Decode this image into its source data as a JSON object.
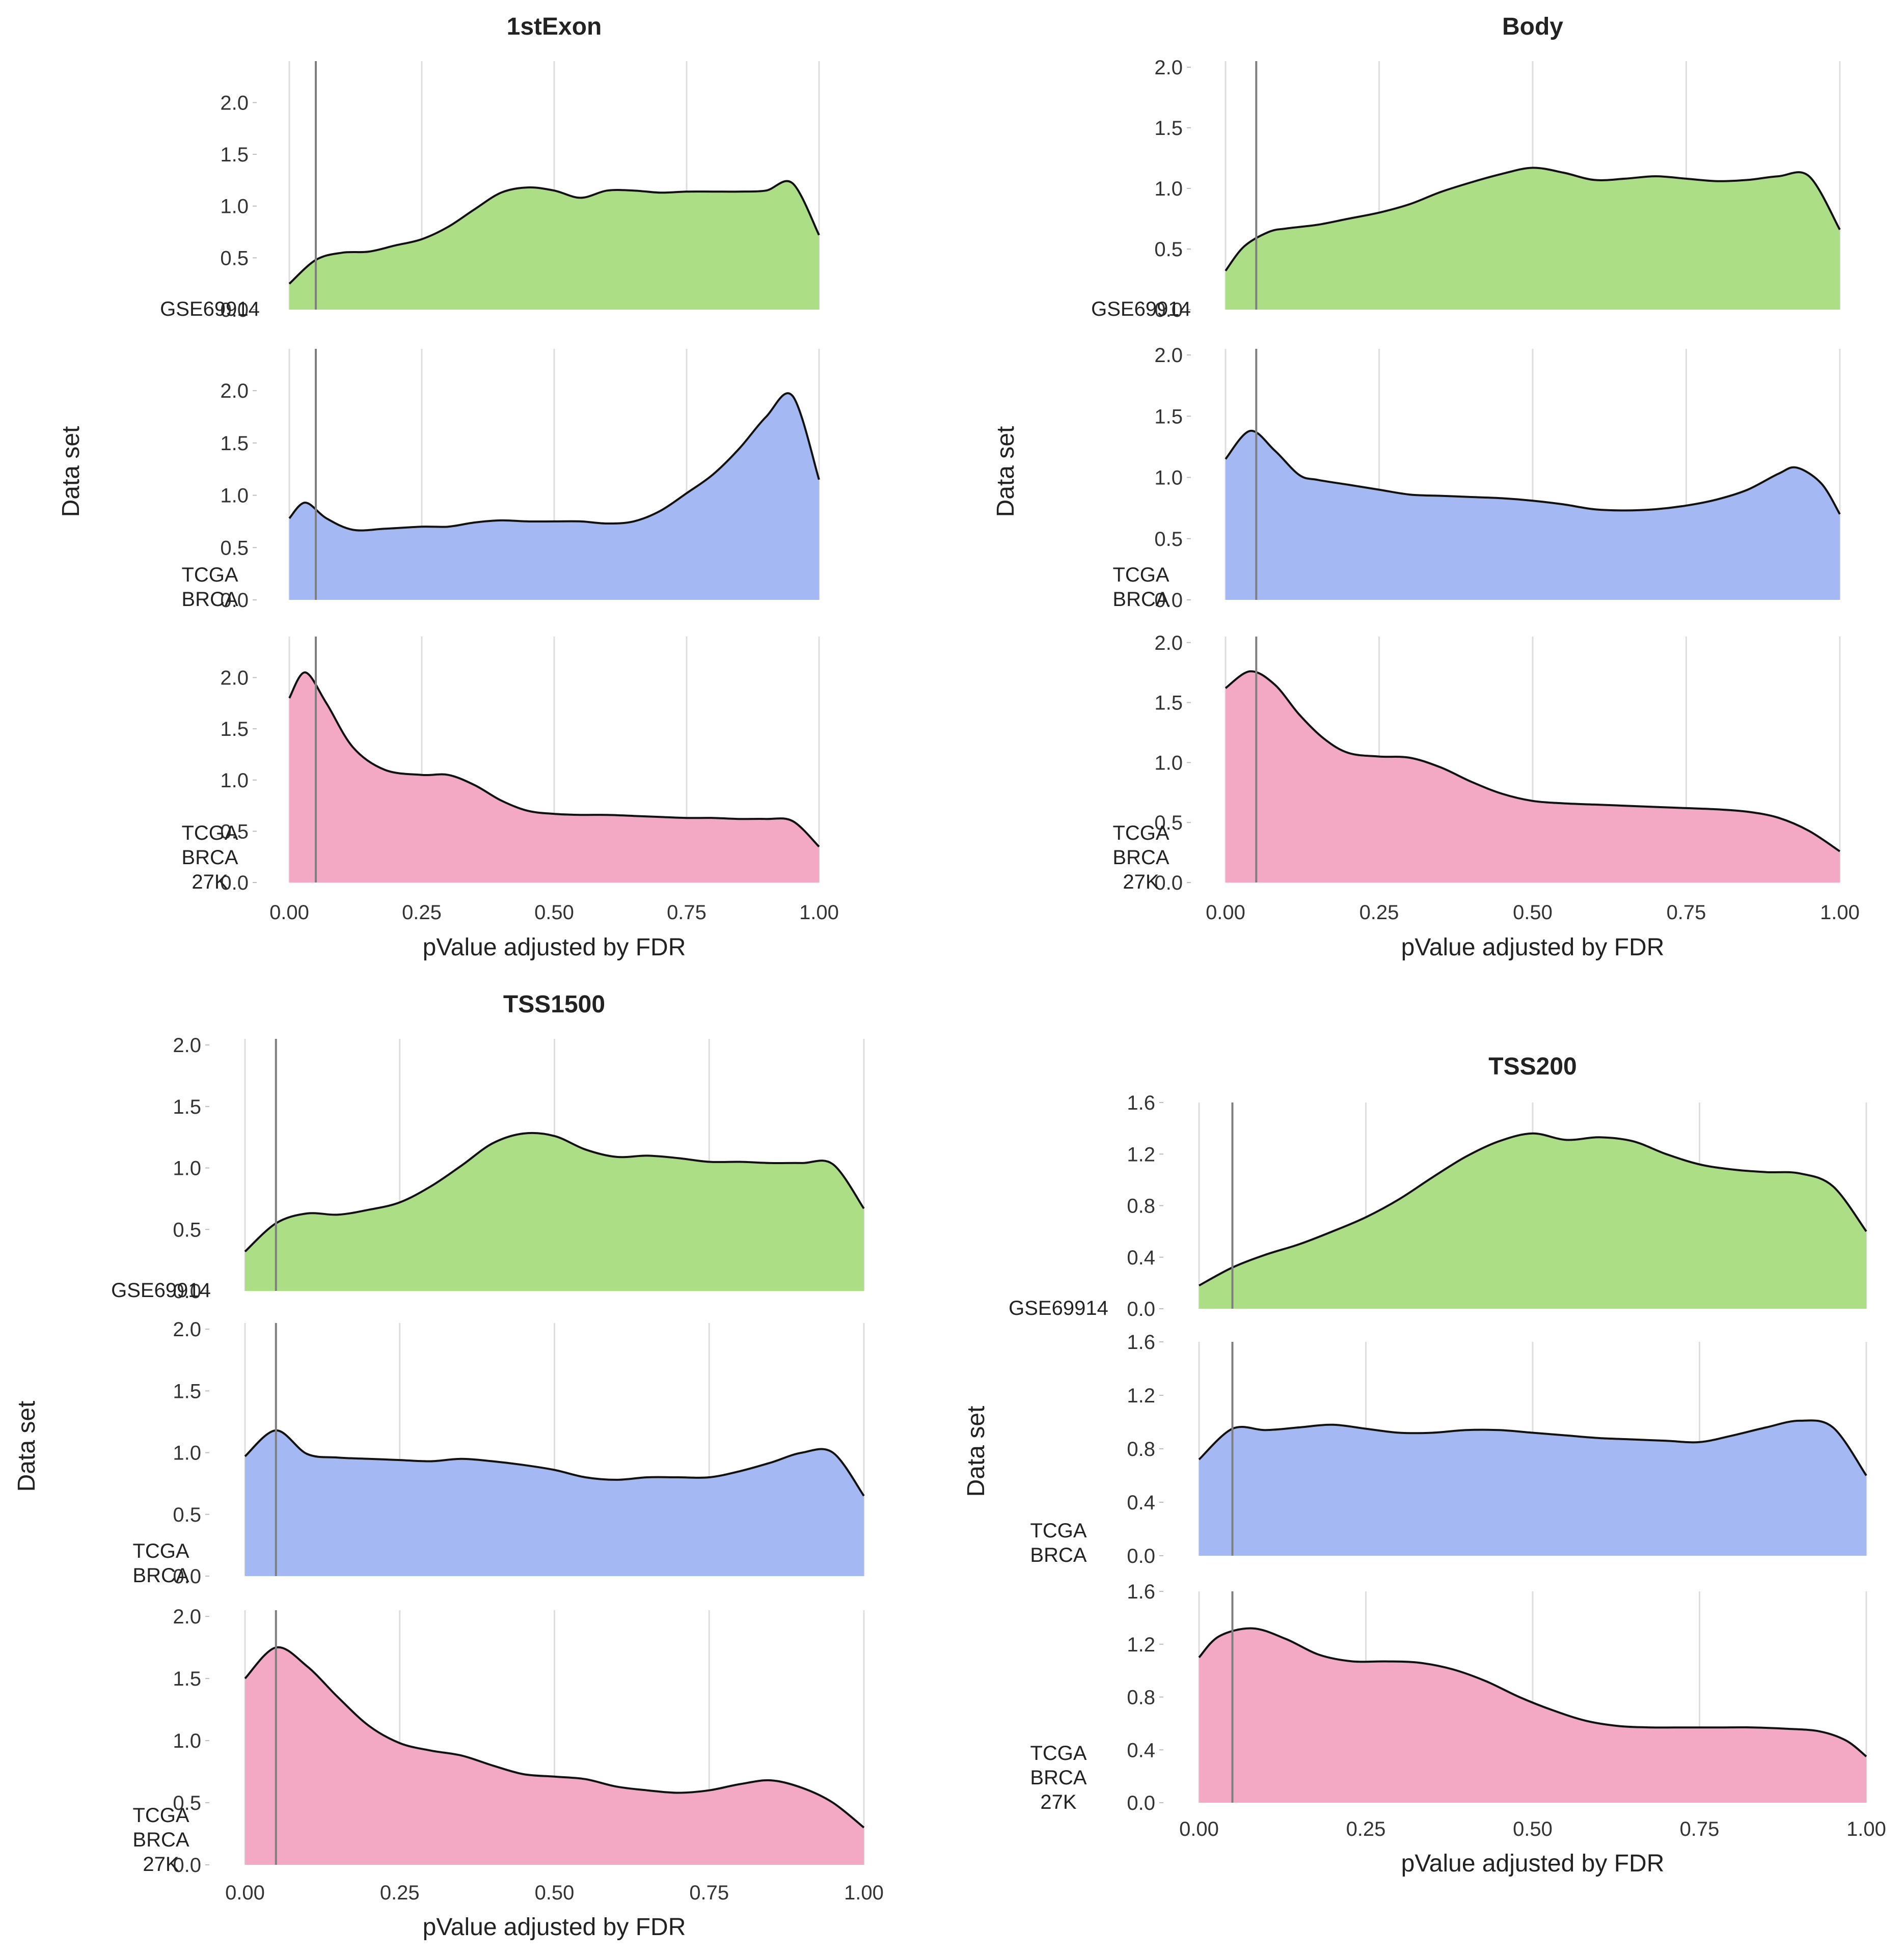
{
  "colors": {
    "GSE69914": "#acdf85",
    "TCGA BRCA": "#a4b8f4",
    "TCGA BRCA 27K": "#f3a8c4"
  },
  "chart_data": [
    {
      "type": "area",
      "title": "1stExon",
      "xlabel": "pValue adjusted by FDR",
      "ylabel": "Data set",
      "xlim": [
        0,
        1
      ],
      "x_ticks": [
        "0.00",
        "0.25",
        "0.50",
        "0.75",
        "1.00"
      ],
      "vline": 0.05,
      "rows": [
        {
          "label": [
            "GSE69914"
          ],
          "color_key": "GSE69914",
          "ylim": [
            0,
            2.4
          ],
          "y_ticks": [
            "0.0",
            "0.5",
            "1.0",
            "1.5",
            "2.0"
          ],
          "x": [
            0,
            0.05,
            0.1,
            0.15,
            0.2,
            0.25,
            0.3,
            0.35,
            0.4,
            0.45,
            0.5,
            0.55,
            0.6,
            0.65,
            0.7,
            0.75,
            0.8,
            0.85,
            0.9,
            0.95,
            1
          ],
          "y": [
            0.25,
            0.48,
            0.55,
            0.56,
            0.62,
            0.68,
            0.8,
            0.97,
            1.13,
            1.18,
            1.15,
            1.08,
            1.15,
            1.15,
            1.13,
            1.14,
            1.14,
            1.14,
            1.15,
            1.22,
            0.72
          ]
        },
        {
          "label": [
            "TCGA",
            "BRCA"
          ],
          "color_key": "TCGA BRCA",
          "ylim": [
            0,
            2.4
          ],
          "y_ticks": [
            "0.0",
            "0.5",
            "1.0",
            "1.5",
            "2.0"
          ],
          "x": [
            0,
            0.03,
            0.07,
            0.12,
            0.18,
            0.25,
            0.3,
            0.35,
            0.4,
            0.45,
            0.5,
            0.55,
            0.6,
            0.65,
            0.7,
            0.75,
            0.8,
            0.85,
            0.9,
            0.95,
            1
          ],
          "y": [
            0.78,
            0.93,
            0.78,
            0.67,
            0.68,
            0.7,
            0.7,
            0.74,
            0.76,
            0.75,
            0.75,
            0.75,
            0.73,
            0.75,
            0.85,
            1.02,
            1.2,
            1.45,
            1.75,
            1.95,
            1.15
          ]
        },
        {
          "label": [
            "TCGA",
            "BRCA",
            "27K"
          ],
          "color_key": "TCGA BRCA 27K",
          "ylim": [
            0,
            2.4
          ],
          "y_ticks": [
            "0.0",
            "0.5",
            "1.0",
            "1.5",
            "2.0"
          ],
          "x": [
            0,
            0.03,
            0.07,
            0.12,
            0.18,
            0.25,
            0.3,
            0.35,
            0.4,
            0.45,
            0.5,
            0.55,
            0.6,
            0.65,
            0.7,
            0.75,
            0.8,
            0.85,
            0.9,
            0.95,
            1
          ],
          "y": [
            1.8,
            2.05,
            1.75,
            1.32,
            1.1,
            1.05,
            1.05,
            0.95,
            0.8,
            0.7,
            0.67,
            0.66,
            0.66,
            0.65,
            0.64,
            0.63,
            0.63,
            0.62,
            0.62,
            0.6,
            0.35
          ]
        }
      ]
    },
    {
      "type": "area",
      "title": "Body",
      "xlabel": "pValue adjusted by FDR",
      "ylabel": "Data set",
      "xlim": [
        0,
        1
      ],
      "x_ticks": [
        "0.00",
        "0.25",
        "0.50",
        "0.75",
        "1.00"
      ],
      "vline": 0.05,
      "rows": [
        {
          "label": [
            "GSE69914"
          ],
          "color_key": "GSE69914",
          "ylim": [
            0,
            2.05
          ],
          "y_ticks": [
            "0.0",
            "0.5",
            "1.0",
            "1.5",
            "2.0"
          ],
          "x": [
            0,
            0.03,
            0.07,
            0.1,
            0.15,
            0.2,
            0.25,
            0.3,
            0.35,
            0.4,
            0.45,
            0.5,
            0.55,
            0.6,
            0.65,
            0.7,
            0.75,
            0.8,
            0.85,
            0.9,
            0.95,
            1
          ],
          "y": [
            0.32,
            0.52,
            0.64,
            0.67,
            0.7,
            0.75,
            0.8,
            0.87,
            0.97,
            1.05,
            1.12,
            1.17,
            1.13,
            1.07,
            1.08,
            1.1,
            1.08,
            1.06,
            1.07,
            1.1,
            1.1,
            0.66
          ]
        },
        {
          "label": [
            "TCGA",
            "BRCA"
          ],
          "color_key": "TCGA BRCA",
          "ylim": [
            0,
            2.05
          ],
          "y_ticks": [
            "0.0",
            "0.5",
            "1.0",
            "1.5",
            "2.0"
          ],
          "x": [
            0,
            0.04,
            0.08,
            0.12,
            0.15,
            0.2,
            0.25,
            0.3,
            0.35,
            0.4,
            0.45,
            0.5,
            0.55,
            0.6,
            0.65,
            0.7,
            0.75,
            0.8,
            0.85,
            0.9,
            0.93,
            0.97,
            1
          ],
          "y": [
            1.15,
            1.38,
            1.22,
            1.02,
            0.98,
            0.94,
            0.9,
            0.86,
            0.85,
            0.84,
            0.83,
            0.81,
            0.78,
            0.74,
            0.73,
            0.74,
            0.77,
            0.82,
            0.9,
            1.03,
            1.08,
            0.95,
            0.7
          ]
        },
        {
          "label": [
            "TCGA",
            "BRCA",
            "27K"
          ],
          "color_key": "TCGA BRCA 27K",
          "ylim": [
            0,
            2.05
          ],
          "y_ticks": [
            "0.0",
            "0.5",
            "1.0",
            "1.5",
            "2.0"
          ],
          "x": [
            0,
            0.04,
            0.08,
            0.12,
            0.16,
            0.2,
            0.25,
            0.3,
            0.35,
            0.4,
            0.45,
            0.5,
            0.55,
            0.6,
            0.65,
            0.7,
            0.75,
            0.8,
            0.85,
            0.9,
            0.95,
            1
          ],
          "y": [
            1.62,
            1.76,
            1.65,
            1.4,
            1.2,
            1.08,
            1.05,
            1.04,
            0.96,
            0.84,
            0.74,
            0.68,
            0.66,
            0.65,
            0.64,
            0.63,
            0.62,
            0.61,
            0.59,
            0.54,
            0.43,
            0.26
          ]
        }
      ]
    },
    {
      "type": "area",
      "title": "TSS1500",
      "xlabel": "pValue adjusted by FDR",
      "ylabel": "Data set",
      "xlim": [
        0,
        1
      ],
      "x_ticks": [
        "0.00",
        "0.25",
        "0.50",
        "0.75",
        "1.00"
      ],
      "vline": 0.05,
      "rows": [
        {
          "label": [
            "GSE69914"
          ],
          "color_key": "GSE69914",
          "ylim": [
            0,
            2.05
          ],
          "y_ticks": [
            "0.0",
            "0.5",
            "1.0",
            "1.5",
            "2.0"
          ],
          "x": [
            0,
            0.05,
            0.1,
            0.15,
            0.2,
            0.25,
            0.3,
            0.35,
            0.4,
            0.45,
            0.5,
            0.55,
            0.6,
            0.65,
            0.7,
            0.75,
            0.8,
            0.85,
            0.9,
            0.95,
            1
          ],
          "y": [
            0.32,
            0.55,
            0.63,
            0.62,
            0.66,
            0.72,
            0.85,
            1.02,
            1.2,
            1.28,
            1.26,
            1.15,
            1.09,
            1.1,
            1.08,
            1.05,
            1.05,
            1.04,
            1.04,
            1.03,
            0.67
          ]
        },
        {
          "label": [
            "TCGA",
            "BRCA"
          ],
          "color_key": "TCGA BRCA",
          "ylim": [
            0,
            2.05
          ],
          "y_ticks": [
            "0.0",
            "0.5",
            "1.0",
            "1.5",
            "2.0"
          ],
          "x": [
            0,
            0.05,
            0.1,
            0.15,
            0.2,
            0.25,
            0.3,
            0.35,
            0.4,
            0.45,
            0.5,
            0.55,
            0.6,
            0.65,
            0.7,
            0.75,
            0.8,
            0.85,
            0.9,
            0.95,
            1
          ],
          "y": [
            0.97,
            1.18,
            0.99,
            0.96,
            0.95,
            0.94,
            0.93,
            0.95,
            0.93,
            0.9,
            0.86,
            0.8,
            0.78,
            0.8,
            0.8,
            0.8,
            0.85,
            0.92,
            1.0,
            1.0,
            0.65
          ]
        },
        {
          "label": [
            "TCGA",
            "BRCA",
            "27K"
          ],
          "color_key": "TCGA BRCA 27K",
          "ylim": [
            0,
            2.05
          ],
          "y_ticks": [
            "0.0",
            "0.5",
            "1.0",
            "1.5",
            "2.0"
          ],
          "x": [
            0,
            0.05,
            0.1,
            0.15,
            0.2,
            0.25,
            0.3,
            0.35,
            0.4,
            0.45,
            0.5,
            0.55,
            0.6,
            0.65,
            0.7,
            0.75,
            0.8,
            0.85,
            0.9,
            0.95,
            1
          ],
          "y": [
            1.5,
            1.75,
            1.6,
            1.35,
            1.12,
            0.98,
            0.92,
            0.88,
            0.8,
            0.73,
            0.71,
            0.69,
            0.63,
            0.6,
            0.58,
            0.6,
            0.65,
            0.68,
            0.62,
            0.5,
            0.3
          ]
        }
      ]
    },
    {
      "type": "area",
      "title": "TSS200",
      "xlabel": "pValue adjusted by FDR",
      "ylabel": "Data set",
      "xlim": [
        0,
        1
      ],
      "x_ticks": [
        "0.00",
        "0.25",
        "0.50",
        "0.75",
        "1.00"
      ],
      "vline": 0.05,
      "rows": [
        {
          "label": [
            "GSE69914"
          ],
          "color_key": "GSE69914",
          "ylim": [
            0,
            1.6
          ],
          "y_ticks": [
            "0.0",
            "0.4",
            "0.8",
            "1.2",
            "1.6"
          ],
          "x": [
            0,
            0.05,
            0.1,
            0.15,
            0.2,
            0.25,
            0.3,
            0.35,
            0.4,
            0.45,
            0.5,
            0.55,
            0.6,
            0.65,
            0.7,
            0.75,
            0.8,
            0.85,
            0.9,
            0.95,
            1
          ],
          "y": [
            0.18,
            0.32,
            0.42,
            0.5,
            0.6,
            0.71,
            0.85,
            1.02,
            1.18,
            1.3,
            1.36,
            1.31,
            1.33,
            1.3,
            1.2,
            1.12,
            1.08,
            1.06,
            1.05,
            0.95,
            0.6
          ]
        },
        {
          "label": [
            "TCGA",
            "BRCA"
          ],
          "color_key": "TCGA BRCA",
          "ylim": [
            0,
            1.6
          ],
          "y_ticks": [
            "0.0",
            "0.4",
            "0.8",
            "1.2",
            "1.6"
          ],
          "x": [
            0,
            0.05,
            0.1,
            0.15,
            0.2,
            0.25,
            0.3,
            0.35,
            0.4,
            0.45,
            0.5,
            0.55,
            0.6,
            0.65,
            0.7,
            0.75,
            0.8,
            0.85,
            0.9,
            0.95,
            1
          ],
          "y": [
            0.72,
            0.95,
            0.94,
            0.96,
            0.98,
            0.95,
            0.92,
            0.92,
            0.94,
            0.94,
            0.92,
            0.9,
            0.88,
            0.87,
            0.86,
            0.85,
            0.9,
            0.96,
            1.01,
            0.96,
            0.6
          ]
        },
        {
          "label": [
            "TCGA",
            "BRCA",
            "27K"
          ],
          "color_key": "TCGA BRCA 27K",
          "ylim": [
            0,
            1.6
          ],
          "y_ticks": [
            "0.0",
            "0.4",
            "0.8",
            "1.2",
            "1.6"
          ],
          "x": [
            0,
            0.03,
            0.08,
            0.13,
            0.18,
            0.23,
            0.28,
            0.33,
            0.38,
            0.43,
            0.48,
            0.53,
            0.58,
            0.63,
            0.68,
            0.73,
            0.78,
            0.83,
            0.88,
            0.93,
            0.97,
            1
          ],
          "y": [
            1.1,
            1.26,
            1.32,
            1.24,
            1.12,
            1.07,
            1.07,
            1.06,
            1.01,
            0.92,
            0.8,
            0.7,
            0.62,
            0.58,
            0.57,
            0.57,
            0.57,
            0.57,
            0.56,
            0.54,
            0.47,
            0.35
          ]
        }
      ]
    }
  ]
}
